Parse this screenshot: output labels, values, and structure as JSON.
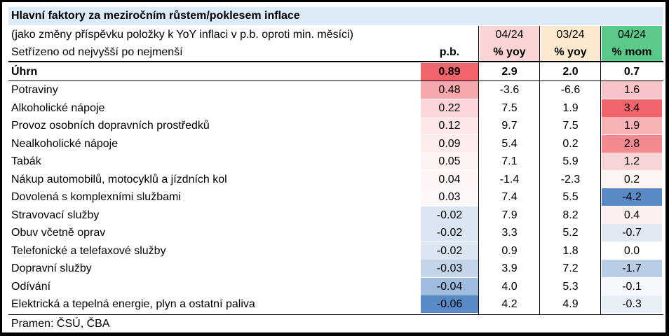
{
  "table": {
    "title": "Hlavní faktory za meziročním růstem/poklesem inflace",
    "subtitle_1": "(jako změny příspěvku položky k YoY inflaci v p.b. oproti min. měsíci)",
    "subtitle_2": "Setřízeno od nejvyšší po nejmenší",
    "col_pb": "p.b.",
    "col2_top": "04/24",
    "col2_bot": "% yoy",
    "col3_top": "03/24",
    "col3_bot": "% yoy",
    "col4_top": "04/24",
    "col4_bot": "% mom",
    "colors": {
      "title_bg": "#dcebf7",
      "col2_header": "#fbd5d5",
      "col3_header": "#fde9d0",
      "col4_header": "#5bc98a"
    },
    "rows": [
      {
        "label": "Úhrn",
        "pb": "0.89",
        "yoy04": "2.9",
        "yoy03": "2.0",
        "mom": "0.7",
        "bold": true,
        "pb_bg": "#f2646b",
        "mom_bg": "#ffffff"
      },
      {
        "label": "Potraviny",
        "pb": "0.48",
        "yoy04": "-3.6",
        "yoy03": "-6.6",
        "mom": "1.6",
        "pb_bg": "#f6a7ab",
        "mom_bg": "#f7c4c7"
      },
      {
        "label": "Alkoholické nápoje",
        "pb": "0.22",
        "yoy04": "7.5",
        "yoy03": "1.9",
        "mom": "3.4",
        "pb_bg": "#fbd5d7",
        "mom_bg": "#f2646b"
      },
      {
        "label": "Provoz osobních dopravních prostředků",
        "pb": "0.12",
        "yoy04": "9.7",
        "yoy03": "7.5",
        "mom": "1.9",
        "pb_bg": "#fce6e7",
        "mom_bg": "#f6b3b6"
      },
      {
        "label": "Nealkoholické nápoje",
        "pb": "0.09",
        "yoy04": "5.4",
        "yoy03": "0.2",
        "mom": "2.8",
        "pb_bg": "#fdecec",
        "mom_bg": "#f48a8f"
      },
      {
        "label": "Tabák",
        "pb": "0.05",
        "yoy04": "7.1",
        "yoy03": "5.9",
        "mom": "1.2",
        "pb_bg": "#fdf3f3",
        "mom_bg": "#f9d4d6"
      },
      {
        "label": "Nákup automobilů, motocyklů a jízdních kol",
        "pb": "0.04",
        "yoy04": "-1.4",
        "yoy03": "-2.3",
        "mom": "0.2",
        "pb_bg": "#fef5f5",
        "mom_bg": "#fdf4f4"
      },
      {
        "label": "Dovolená s komplexními službami",
        "pb": "0.03",
        "yoy04": "7.4",
        "yoy03": "5.5",
        "mom": "-4.2",
        "pb_bg": "#fef7f7",
        "mom_bg": "#5a8ac6"
      },
      {
        "label": "Stravovací služby",
        "pb": "-0.02",
        "yoy04": "7.9",
        "yoy03": "8.2",
        "mom": "0.4",
        "pb_bg": "#dce6f2",
        "mom_bg": "#fdf0f0"
      },
      {
        "label": "Obuv včetně oprav",
        "pb": "-0.02",
        "yoy04": "3.3",
        "yoy03": "5.2",
        "mom": "-0.7",
        "pb_bg": "#dce6f2",
        "mom_bg": "#dfe8f3"
      },
      {
        "label": "Telefonické a telefaxové služby",
        "pb": "-0.02",
        "yoy04": "0.9",
        "yoy03": "1.8",
        "mom": "0.0",
        "pb_bg": "#dce6f2",
        "mom_bg": "#ffffff"
      },
      {
        "label": "Dopravní služby",
        "pb": "-0.03",
        "yoy04": "3.9",
        "yoy03": "7.2",
        "mom": "-1.7",
        "pb_bg": "#c4d5ea",
        "mom_bg": "#b9cde6"
      },
      {
        "label": "Odívání",
        "pb": "-0.04",
        "yoy04": "4.0",
        "yoy03": "5.3",
        "mom": "-0.1",
        "pb_bg": "#9fbbde",
        "mom_bg": "#f4f7fb"
      },
      {
        "label": "Elektrická a tepelná energie, plyn a ostatní paliva",
        "pb": "-0.06",
        "yoy04": "4.2",
        "yoy03": "4.9",
        "mom": "-0.3",
        "pb_bg": "#5a8ac6",
        "mom_bg": "#e9eff7"
      }
    ],
    "source": "Pramen: ČSÚ, ČBA"
  }
}
